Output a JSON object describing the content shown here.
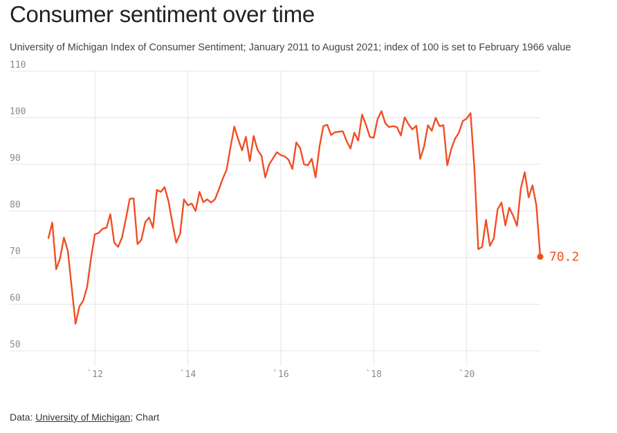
{
  "title": "Consumer sentiment over time",
  "subtitle": "University of Michigan Index of Consumer Sentiment; January 2011 to August 2021; index of 100 is set to February 1966 value",
  "footer": {
    "prefix": "Data: ",
    "source_link": "University of Michigan",
    "suffix": "; Chart"
  },
  "colors": {
    "line": "#f04e23",
    "grid": "#e4e4e4",
    "tick_text": "#8a8a8a"
  },
  "chart_data": {
    "type": "line",
    "title": "Consumer sentiment over time",
    "subtitle": "University of Michigan Index of Consumer Sentiment; January 2011 to August 2021; index of 100 is set to February 1966 value",
    "xlabel": "",
    "ylabel": "",
    "ylim": [
      50,
      110
    ],
    "yticks": [
      50,
      60,
      70,
      80,
      90,
      100,
      110
    ],
    "xlim": [
      2011.0,
      2021.583
    ],
    "xticks": [
      {
        "value": 2012,
        "label": "`12"
      },
      {
        "value": 2014,
        "label": "`14"
      },
      {
        "value": 2016,
        "label": "`16"
      },
      {
        "value": 2018,
        "label": "`18"
      },
      {
        "value": 2020,
        "label": "`20"
      }
    ],
    "grid": true,
    "end_label": "70.2",
    "x_start_year": 2011,
    "x_start_month": 1,
    "series": [
      {
        "values": [
          74.2,
          77.5,
          67.5,
          69.8,
          74.3,
          71.5,
          63.7,
          55.8,
          59.5,
          60.8,
          63.7,
          69.9,
          75.0,
          75.3,
          76.2,
          76.4,
          79.3,
          73.2,
          72.3,
          74.3,
          78.3,
          82.6,
          82.7,
          72.9,
          73.8,
          77.6,
          78.6,
          76.4,
          84.5,
          84.1,
          85.1,
          82.1,
          77.5,
          73.2,
          75.1,
          82.5,
          81.2,
          81.6,
          80.0,
          84.1,
          81.9,
          82.5,
          81.8,
          82.5,
          84.6,
          86.9,
          88.8,
          93.6,
          98.1,
          95.4,
          93.0,
          95.9,
          90.7,
          96.1,
          93.1,
          91.9,
          87.2,
          90.0,
          91.3,
          92.6,
          92.0,
          91.7,
          91.0,
          89.0,
          94.7,
          93.5,
          90.0,
          89.8,
          91.2,
          87.2,
          93.8,
          98.2,
          98.5,
          96.3,
          96.9,
          97.0,
          97.1,
          95.0,
          93.4,
          96.8,
          95.1,
          100.7,
          98.5,
          95.9,
          95.7,
          99.7,
          101.4,
          98.8,
          98.0,
          98.2,
          98.0,
          96.2,
          100.1,
          98.6,
          97.5,
          98.3,
          91.2,
          93.8,
          98.4,
          97.2,
          100.0,
          98.2,
          98.4,
          89.8,
          93.2,
          95.5,
          96.8,
          99.3,
          99.8,
          101.0,
          89.1,
          71.8,
          72.3,
          78.1,
          72.5,
          74.1,
          80.4,
          81.8,
          76.9,
          80.7,
          79.0,
          76.8,
          84.9,
          88.3,
          82.9,
          85.5,
          81.2,
          70.2
        ]
      }
    ]
  }
}
